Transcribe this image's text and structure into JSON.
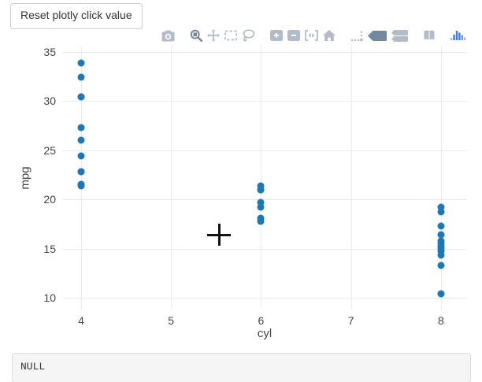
{
  "toolbar": {
    "reset_button_label": "Reset plotly click value"
  },
  "modebar": {
    "colors": {
      "inactive": "#b2bcc8",
      "active": "#73879e",
      "logo": "#447adb"
    },
    "groups": [
      {
        "icons": [
          {
            "name": "camera",
            "title": "Download plot as a png",
            "state": "inactive"
          }
        ]
      },
      {
        "icons": [
          {
            "name": "zoom",
            "title": "Zoom",
            "state": "active"
          },
          {
            "name": "pan",
            "title": "Pan",
            "state": "inactive"
          },
          {
            "name": "box-select",
            "title": "Box Select",
            "state": "inactive"
          },
          {
            "name": "lasso-select",
            "title": "Lasso Select",
            "state": "inactive"
          }
        ]
      },
      {
        "icons": [
          {
            "name": "zoom-in",
            "title": "Zoom in",
            "state": "inactive"
          },
          {
            "name": "zoom-out",
            "title": "Zoom out",
            "state": "inactive"
          },
          {
            "name": "autoscale",
            "title": "Autoscale",
            "state": "inactive"
          },
          {
            "name": "reset-axes",
            "title": "Reset axes",
            "state": "inactive"
          }
        ]
      },
      {
        "icons": [
          {
            "name": "spikelines",
            "title": "Toggle Spike Lines",
            "state": "inactive"
          },
          {
            "name": "hover-closest",
            "title": "Show closest data on hover",
            "state": "active"
          },
          {
            "name": "hover-compare",
            "title": "Compare data on hover",
            "state": "inactive"
          }
        ]
      },
      {
        "icons": [
          {
            "name": "chart-studio",
            "title": "Edit in Chart Studio",
            "state": "inactive"
          }
        ]
      },
      {
        "icons": [
          {
            "name": "plotly-logo",
            "title": "Produced with Plotly",
            "state": "logo"
          }
        ]
      }
    ]
  },
  "chart_data": {
    "type": "scatter",
    "xlabel": "cyl",
    "ylabel": "mpg",
    "x_ticks": [
      4,
      5,
      6,
      7,
      8
    ],
    "y_ticks": [
      10,
      15,
      20,
      25,
      30,
      35
    ],
    "x_range": [
      3.79,
      8.29
    ],
    "y_range": [
      8.8,
      35.56
    ],
    "grid": true,
    "gridcolor": "#ebebeb",
    "marker_color": "#1f77b4",
    "points": [
      [
        6,
        21.0
      ],
      [
        6,
        21.0
      ],
      [
        4,
        22.8
      ],
      [
        6,
        21.4
      ],
      [
        8,
        18.7
      ],
      [
        6,
        18.1
      ],
      [
        8,
        14.3
      ],
      [
        4,
        24.4
      ],
      [
        4,
        22.8
      ],
      [
        6,
        19.2
      ],
      [
        6,
        17.8
      ],
      [
        8,
        16.4
      ],
      [
        8,
        17.3
      ],
      [
        8,
        15.2
      ],
      [
        8,
        10.4
      ],
      [
        8,
        10.4
      ],
      [
        8,
        14.7
      ],
      [
        4,
        32.4
      ],
      [
        4,
        30.4
      ],
      [
        4,
        33.9
      ],
      [
        4,
        21.5
      ],
      [
        8,
        15.5
      ],
      [
        8,
        15.2
      ],
      [
        8,
        13.3
      ],
      [
        8,
        19.2
      ],
      [
        4,
        27.3
      ],
      [
        4,
        26.0
      ],
      [
        4,
        30.4
      ],
      [
        8,
        15.8
      ],
      [
        6,
        19.7
      ],
      [
        8,
        15.0
      ],
      [
        4,
        21.4
      ]
    ]
  },
  "output": {
    "value": "NULL"
  }
}
